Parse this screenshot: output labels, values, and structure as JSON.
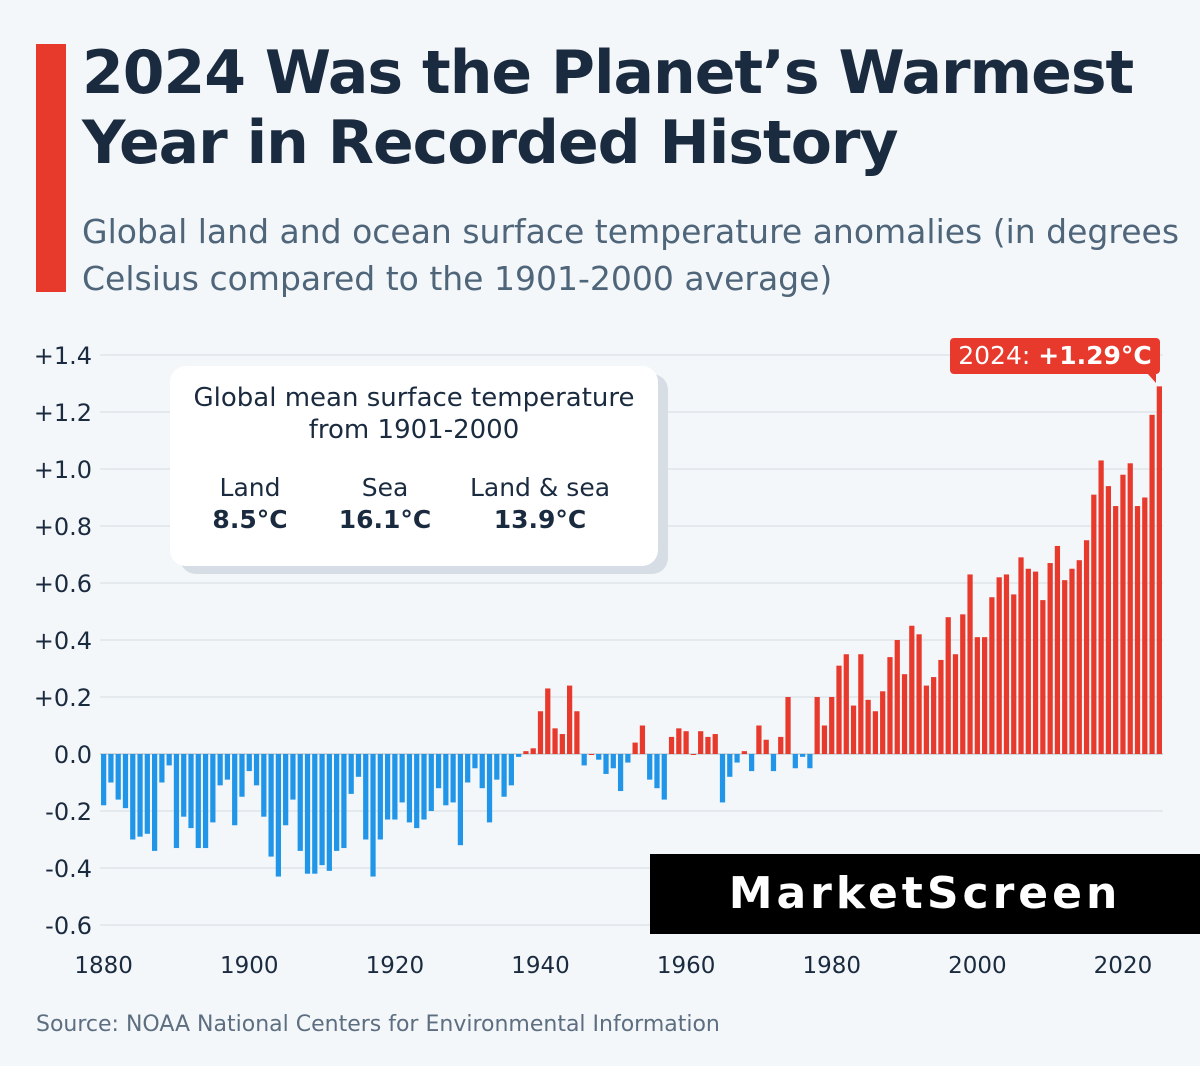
{
  "header": {
    "title": "2024 Was the Planet’s Warmest Year in Recorded History",
    "subtitle": "Global land and ocean surface temperature anomalies (in degrees Celsius compared to the 1901-2000 average)"
  },
  "info_box": {
    "title": "Global mean surface temperature from 1901-2000",
    "land_label": "Land",
    "land_value": "8.5°C",
    "sea_label": "Sea",
    "sea_value": "16.1°C",
    "both_label": "Land & sea",
    "both_value": "13.9°C"
  },
  "callout": {
    "year": "2024:",
    "value": "+1.29°C"
  },
  "watermark": "MarketScreen",
  "source": "Source: NOAA National Centers for Environmental Information",
  "colors": {
    "positive": "#e8392d",
    "negative": "#2196e8",
    "accent": "#e8392d",
    "title": "#1b2b3f"
  },
  "chart_data": {
    "type": "bar",
    "title": "2024 Was the Planet’s Warmest Year in Recorded History",
    "ylim": [
      -0.6,
      1.4
    ],
    "y_ticks": [
      "+1.4",
      "+1.2",
      "+1.0",
      "+0.8",
      "+0.6",
      "+0.4",
      "+0.2",
      "0.0",
      "-0.2",
      "-0.4",
      "-0.6"
    ],
    "y_tick_values": [
      1.4,
      1.2,
      1.0,
      0.8,
      0.6,
      0.4,
      0.2,
      0.0,
      -0.2,
      -0.4,
      -0.6
    ],
    "x_ticks": [
      "1880",
      "1900",
      "1920",
      "1940",
      "1960",
      "1980",
      "2000",
      "2020"
    ],
    "x_tick_values": [
      1880,
      1900,
      1920,
      1940,
      1960,
      1980,
      2000,
      2020
    ],
    "x_start": 1880,
    "grid": true,
    "values": [
      -0.18,
      -0.1,
      -0.16,
      -0.19,
      -0.3,
      -0.29,
      -0.28,
      -0.34,
      -0.1,
      -0.04,
      -0.33,
      -0.22,
      -0.26,
      -0.33,
      -0.33,
      -0.24,
      -0.11,
      -0.09,
      -0.25,
      -0.15,
      -0.06,
      -0.11,
      -0.22,
      -0.36,
      -0.43,
      -0.25,
      -0.16,
      -0.34,
      -0.42,
      -0.42,
      -0.39,
      -0.41,
      -0.34,
      -0.33,
      -0.14,
      -0.08,
      -0.3,
      -0.43,
      -0.3,
      -0.23,
      -0.23,
      -0.17,
      -0.24,
      -0.26,
      -0.23,
      -0.2,
      -0.12,
      -0.18,
      -0.17,
      -0.32,
      -0.1,
      -0.05,
      -0.12,
      -0.24,
      -0.09,
      -0.15,
      -0.11,
      -0.01,
      0.01,
      0.02,
      0.15,
      0.23,
      0.09,
      0.07,
      0.24,
      0.15,
      -0.04,
      0.0,
      -0.02,
      -0.07,
      -0.05,
      -0.13,
      -0.03,
      0.04,
      0.1,
      -0.09,
      -0.12,
      -0.16,
      0.06,
      0.09,
      0.08,
      0.0,
      0.08,
      0.06,
      0.07,
      -0.17,
      -0.08,
      -0.03,
      0.01,
      -0.06,
      0.1,
      0.05,
      -0.06,
      0.06,
      0.2,
      -0.05,
      -0.01,
      -0.05,
      0.2,
      0.1,
      0.2,
      0.31,
      0.35,
      0.17,
      0.35,
      0.19,
      0.15,
      0.22,
      0.34,
      0.4,
      0.28,
      0.45,
      0.42,
      0.24,
      0.27,
      0.33,
      0.48,
      0.35,
      0.49,
      0.63,
      0.41,
      0.41,
      0.55,
      0.62,
      0.63,
      0.56,
      0.69,
      0.65,
      0.64,
      0.54,
      0.67,
      0.73,
      0.61,
      0.65,
      0.68,
      0.75,
      0.91,
      1.03,
      0.94,
      0.87,
      0.98,
      1.02,
      0.87,
      0.9,
      1.19,
      1.29
    ]
  }
}
